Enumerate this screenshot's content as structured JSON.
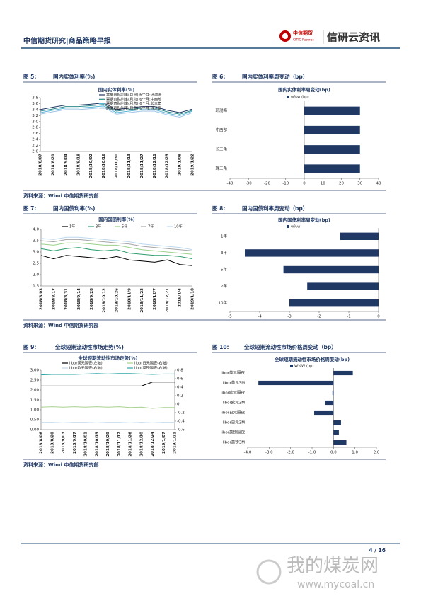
{
  "header": {
    "left": "中信期货研究|商品策略早报",
    "logo_cn": "中信期货",
    "logo_en": "CITIC Futures",
    "brand": "信研云资讯"
  },
  "figures": [
    {
      "label": "图 5:",
      "title": "国内实体利率(%)"
    },
    {
      "label": "图 6:",
      "title": "国内实体利率周变动（bp）"
    },
    {
      "label": "图 7:",
      "title": "国内国债利率(%)"
    },
    {
      "label": "图 8:",
      "title": "国内国债利率周变动（bp）"
    },
    {
      "label": "图 9:",
      "title": "全球短期流动性市场走势(%)"
    },
    {
      "label": "图 10:",
      "title": "全球短期流动性市场价格周变动（bp）"
    }
  ],
  "sources": [
    "资料来源：Wind 中信期货研究部",
    "资料来源：Wind 中信期货研究部",
    "资料来源：Wind 中信期货研究部"
  ],
  "footer": {
    "page": "4 / 16"
  },
  "watermark": {
    "cn": "我的煤炭网",
    "url": "www.mycoal.cn"
  },
  "chart_data": [
    {
      "type": "line",
      "title": "国内实体利率(%)",
      "categories": [
        "2018/8/07",
        "2018/8/21",
        "2018/9/04",
        "2018/9/18",
        "2018/10/02",
        "2018/10/16",
        "2018/10/30",
        "2018/11/13",
        "2018/11/27",
        "2018/12/11",
        "2018/12/25",
        "2019/1/08",
        "2019/1/22"
      ],
      "series": [
        {
          "name": "票据直贴利率(月息):6个月:环渤海",
          "color": "#1f3864",
          "values": [
            3.4,
            3.48,
            3.55,
            3.55,
            3.58,
            3.62,
            3.4,
            3.45,
            3.5,
            3.5,
            3.38,
            3.3,
            3.42
          ]
        },
        {
          "name": "票据直贴利率(月息):6个月:中西部",
          "color": "#2e8b8b",
          "values": [
            3.35,
            3.42,
            3.5,
            3.5,
            3.53,
            3.57,
            3.35,
            3.4,
            3.45,
            3.45,
            3.33,
            3.25,
            3.38
          ]
        },
        {
          "name": "票据直贴利率(月息):6个月:长三角",
          "color": "#5bb5d5",
          "values": [
            3.3,
            3.38,
            3.45,
            3.45,
            3.48,
            3.52,
            3.3,
            3.35,
            3.4,
            3.4,
            3.28,
            3.2,
            3.35
          ]
        },
        {
          "name": "票据直贴利率(月息):6个月:珠三角",
          "color": "#9dc3e6",
          "values": [
            3.25,
            3.33,
            3.4,
            3.4,
            3.43,
            3.47,
            3.25,
            3.3,
            3.35,
            3.35,
            3.23,
            3.15,
            3.3
          ]
        }
      ],
      "ylim": [
        2.0,
        3.8
      ],
      "yticks": [
        {
          "value": 2,
          "label": "2.0"
        },
        2.2,
        2.4,
        2.6,
        2.8,
        {
          "value": 3,
          "label": "3.0"
        },
        3.2,
        3.4,
        3.6,
        3.8
      ]
    },
    {
      "type": "hbar",
      "title": "国内实体利率周变动(bp)",
      "categories": [
        "环渤海",
        "中西部",
        "长三角",
        "珠三角"
      ],
      "series": [
        {
          "name": "w%w (bp)",
          "color": "#1f3864",
          "values": [
            30,
            30,
            30,
            30
          ]
        }
      ],
      "xlim": [
        -40,
        40
      ],
      "xticks": [
        -40,
        -30,
        -20,
        -10,
        0,
        10,
        20,
        30,
        40
      ]
    },
    {
      "type": "line",
      "title": "国内国债利率(%)",
      "categories": [
        "2018/8/03",
        "2018/8/17",
        "2018/8/31",
        "2018/9/14",
        "2018/9/28",
        "2018/10/12",
        "2018/10/26",
        "2018/11/9",
        "2018/11/23",
        "2018/12/7",
        "2018/12/21",
        "2019/1/4",
        "2019/1/18"
      ],
      "series": [
        {
          "name": "1年",
          "color": "#000000",
          "values": [
            2.85,
            2.7,
            2.85,
            2.8,
            2.75,
            2.7,
            2.8,
            2.65,
            2.6,
            2.55,
            2.65,
            2.45,
            2.4
          ]
        },
        {
          "name": "3年",
          "color": "#2e9e6e",
          "values": [
            3.15,
            3.05,
            3.15,
            3.2,
            3.1,
            3.05,
            3.1,
            2.95,
            2.9,
            2.85,
            2.85,
            2.8,
            2.7
          ]
        },
        {
          "name": "5年",
          "color": "#9bd08a",
          "values": [
            3.35,
            3.3,
            3.4,
            3.4,
            3.35,
            3.3,
            3.3,
            3.2,
            3.1,
            3.05,
            3.0,
            2.95,
            2.9
          ]
        },
        {
          "name": "7年",
          "color": "#a6a6a6",
          "values": [
            3.5,
            3.45,
            3.55,
            3.55,
            3.5,
            3.45,
            3.4,
            3.35,
            3.25,
            3.2,
            3.15,
            3.1,
            3.05
          ]
        },
        {
          "name": "10年",
          "color": "#bdd7ee",
          "values": [
            3.6,
            3.55,
            3.65,
            3.65,
            3.6,
            3.55,
            3.5,
            3.45,
            3.35,
            3.3,
            3.25,
            3.2,
            3.1
          ]
        }
      ],
      "ylim": [
        1.5,
        4.0
      ],
      "yticks": [
        1.5,
        {
          "value": 2,
          "label": "2.0"
        },
        2.5,
        {
          "value": 3,
          "label": "3.0"
        },
        3.5,
        {
          "value": 4,
          "label": "4.0"
        }
      ]
    },
    {
      "type": "hbar",
      "title": "国内国债利率周变动(bp)",
      "categories": [
        "1年",
        "3年",
        "5年",
        "7年",
        "10年"
      ],
      "series": [
        {
          "name": "w%w",
          "color": "#1f3864",
          "values": [
            -1.3,
            -4.5,
            -3.2,
            -2.4,
            -3.0
          ]
        }
      ],
      "xlim": [
        -5,
        0
      ],
      "xticks": [
        -5,
        -4,
        -3,
        -2,
        -1,
        0
      ]
    },
    {
      "type": "line",
      "title": "全球短期流动性市场走势(%)",
      "categories": [
        "2018/8/06",
        "2018/8/20",
        "2018/9/03",
        "2018/9/17",
        "2018/10/01",
        "2018/10/15",
        "2018/10/29",
        "2018/11/12",
        "2018/11/26",
        "2018/12/10",
        "2018/12/24",
        "2019/1/07",
        "2019/1/21"
      ],
      "series": [
        {
          "name": "libor美元隔夜(左轴)",
          "color": "#000000",
          "values": [
            2.2,
            2.2,
            2.2,
            2.2,
            2.2,
            2.2,
            2.2,
            2.2,
            2.2,
            2.2,
            2.4,
            2.4,
            2.4
          ]
        },
        {
          "name": "libor日元隔夜(右轴)",
          "color": "#a9d18e",
          "axis": "y2",
          "values": [
            -0.07,
            -0.06,
            -0.07,
            -0.06,
            -0.07,
            -0.06,
            -0.07,
            -0.06,
            -0.08,
            -0.07,
            -0.1,
            -0.08,
            -0.08
          ]
        },
        {
          "name": "libor欧元隔夜(右轴)",
          "color": "#bdd7ee",
          "axis": "y2",
          "values": [
            -0.43,
            -0.43,
            -0.44,
            -0.43,
            -0.43,
            -0.44,
            -0.43,
            -0.43,
            -0.44,
            -0.43,
            -0.44,
            -0.43,
            -0.43
          ]
        },
        {
          "name": "libor英镑隔夜(右轴)",
          "color": "#2ea6a6",
          "axis": "y2",
          "values": [
            0.69,
            0.7,
            0.7,
            0.7,
            0.71,
            0.72,
            0.71,
            0.72,
            0.72,
            0.71,
            0.7,
            0.71,
            0.71
          ]
        }
      ],
      "ylim": [
        0,
        3
      ],
      "yticks": [
        {
          "value": 0,
          "label": "0.00"
        },
        {
          "value": 0.5,
          "label": "0.50"
        },
        {
          "value": 1,
          "label": "1.00"
        },
        {
          "value": 1.5,
          "label": "1.50"
        },
        {
          "value": 2,
          "label": "2.00"
        },
        {
          "value": 2.5,
          "label": "2.50"
        },
        {
          "value": 3,
          "label": "3.00"
        }
      ],
      "y2lim": [
        -0.6,
        0.8
      ],
      "y2ticks": [
        -0.6,
        -0.4,
        -0.2,
        0,
        0.2,
        0.4,
        0.6,
        0.8
      ]
    },
    {
      "type": "hbar",
      "title": "全球短期流动性市场价格周变动(bp)",
      "categories": [
        "libor美元隔夜",
        "libor美元3M",
        "libor欧元隔夜",
        "libor欧元3M",
        "libor日元隔夜",
        "libor日元3M",
        "libor英镑隔夜",
        "libor英镑3M"
      ],
      "series": [
        {
          "name": "W%W (bp)",
          "color": "#1f3864",
          "values": [
            0.9,
            -3.5,
            -0.05,
            -0.4,
            -0.9,
            0.35,
            0.25,
            0.6
          ]
        }
      ],
      "xlim": [
        -4,
        2
      ],
      "xticks": [
        {
          "value": -4,
          "label": "-4.0"
        },
        {
          "value": -3,
          "label": "-3.0"
        },
        {
          "value": -2,
          "label": "-2.0"
        },
        {
          "value": -1,
          "label": "-1.0"
        },
        {
          "value": 0,
          "label": "0.0"
        },
        {
          "value": 1,
          "label": "1.0"
        },
        {
          "value": 2,
          "label": "2.0"
        }
      ]
    }
  ]
}
